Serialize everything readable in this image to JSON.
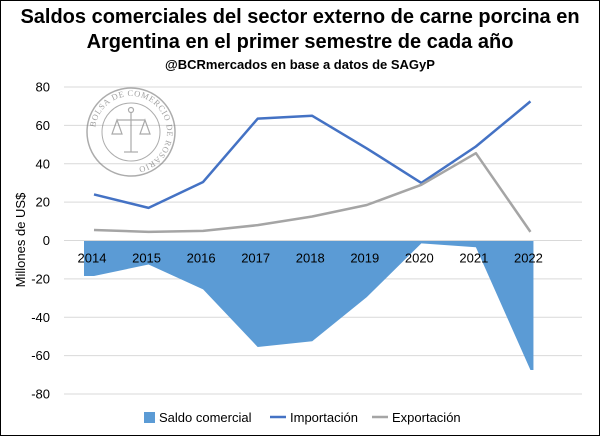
{
  "title_line1": "Saldos comerciales del sector externo de carne porcina en",
  "title_line2": "Argentina en el primer semestre de cada año",
  "subtitle": "@BCRmercados en base a datos de SAGyP",
  "logo_text": "BOLSA DE COMERCIO DE ROSARIO",
  "chart_data": {
    "type": "line",
    "title": "Saldos comerciales del sector externo de carne porcina en Argentina en el primer semestre de cada año",
    "subtitle": "@BCRmercados en base a datos de SAGyP",
    "xlabel": "",
    "ylabel": "Millones de US$",
    "ylim": [
      -80,
      80
    ],
    "yticks": [
      80,
      60,
      40,
      20,
      0,
      -20,
      -40,
      -60,
      -80
    ],
    "grid": true,
    "legend_position": "bottom",
    "categories": [
      "2014",
      "2015",
      "2016",
      "2017",
      "2018",
      "2019",
      "2020",
      "2021",
      "2022"
    ],
    "series": [
      {
        "name": "Saldo comercial",
        "type": "area",
        "color": "#5b9bd5",
        "values": [
          -18.5,
          -12.5,
          -25.5,
          -55.5,
          -52.5,
          -29.5,
          -1.5,
          -3.5,
          -67.5
        ]
      },
      {
        "name": "Importación",
        "type": "line",
        "color": "#4472c4",
        "values": [
          24,
          17,
          30.5,
          63.5,
          65,
          48,
          30,
          49,
          72.5
        ]
      },
      {
        "name": "Exportación",
        "type": "line",
        "color": "#a5a5a5",
        "values": [
          5.5,
          4.5,
          5,
          8,
          12.5,
          18.5,
          29,
          45.5,
          4.5
        ]
      }
    ]
  }
}
